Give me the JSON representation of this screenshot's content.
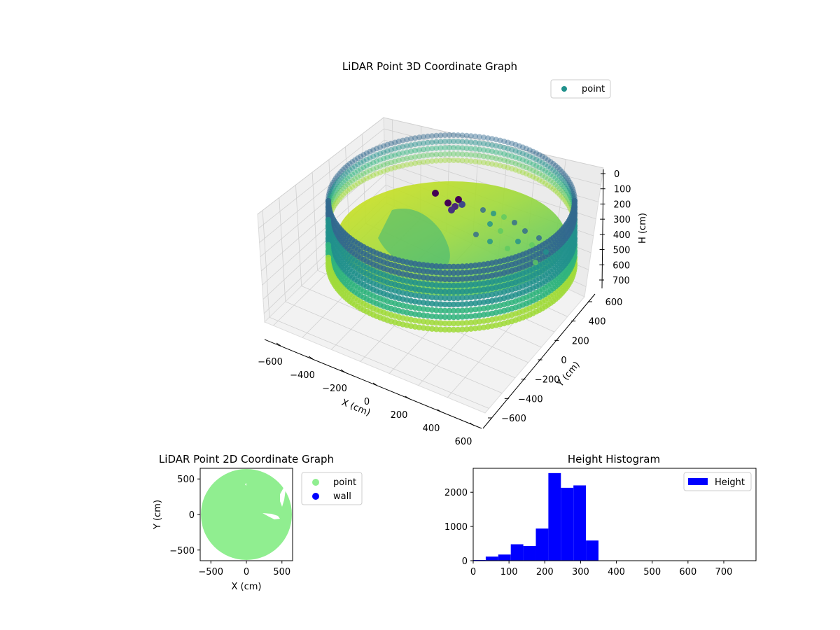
{
  "chart_data": [
    {
      "type": "scatter",
      "projection": "3d",
      "title": "LiDAR Point 3D Coordinate Graph",
      "xlabel": "X (cm)",
      "ylabel": "Y (cm)",
      "zlabel": "H (cm)",
      "xticks": [
        -600,
        -400,
        -200,
        0,
        200,
        400,
        600
      ],
      "yticks": [
        -600,
        -400,
        -200,
        0,
        200,
        400,
        600
      ],
      "zticks": [
        0,
        100,
        200,
        300,
        400,
        500,
        600,
        700
      ],
      "xlim": [
        -650,
        650
      ],
      "ylim": [
        -650,
        650
      ],
      "zlim": [
        750,
        0
      ],
      "z_inverted": true,
      "colormap": "viridis",
      "grid": true,
      "legend": {
        "position": "top-right",
        "entries": [
          {
            "label": "point",
            "color": "#21918c"
          }
        ]
      },
      "series": [
        {
          "name": "point",
          "description_of_shape": "cylindrical wall of points at radius ~650 cm from H 0 to ~600, plus interior ground points at H ~150–300",
          "wall_radius": 650,
          "wall_height_range": [
            0,
            600
          ],
          "interior_height_range": [
            150,
            300
          ]
        }
      ]
    },
    {
      "type": "scatter",
      "title": "LiDAR Point 2D Coordinate Graph",
      "xlabel": "X (cm)",
      "ylabel": "Y (cm)",
      "xticks": [
        -500,
        0,
        500
      ],
      "yticks": [
        -500,
        0,
        500
      ],
      "xlim": [
        -650,
        650
      ],
      "ylim": [
        -650,
        650
      ],
      "legend": {
        "position": "outside-right",
        "entries": [
          {
            "label": "point",
            "color": "#90ee90"
          },
          {
            "label": "wall",
            "color": "#0000ff"
          }
        ]
      },
      "region": {
        "shape": "disc",
        "radius": 650,
        "center": [
          0,
          0
        ],
        "color": "#90ee90"
      }
    },
    {
      "type": "bar",
      "subtype": "histogram",
      "title": "Height Histogram",
      "xlabel": "",
      "ylabel": "",
      "xticks": [
        0,
        100,
        200,
        300,
        400,
        500,
        600,
        700
      ],
      "yticks": [
        0,
        1000,
        2000
      ],
      "xlim": [
        0,
        790
      ],
      "ylim": [
        0,
        2700
      ],
      "bin_width": 35,
      "legend": {
        "position": "top-right",
        "entries": [
          {
            "label": "Height",
            "color": "#0000ff"
          }
        ]
      },
      "series": [
        {
          "name": "Height",
          "color": "#0000ff",
          "bins": [
            {
              "x0": 0,
              "x1": 35,
              "count": 20
            },
            {
              "x0": 35,
              "x1": 70,
              "count": 120
            },
            {
              "x0": 70,
              "x1": 105,
              "count": 180
            },
            {
              "x0": 105,
              "x1": 140,
              "count": 480
            },
            {
              "x0": 140,
              "x1": 175,
              "count": 430
            },
            {
              "x0": 175,
              "x1": 210,
              "count": 940
            },
            {
              "x0": 210,
              "x1": 245,
              "count": 2560
            },
            {
              "x0": 245,
              "x1": 280,
              "count": 2130
            },
            {
              "x0": 280,
              "x1": 315,
              "count": 2200
            },
            {
              "x0": 315,
              "x1": 350,
              "count": 590
            }
          ]
        }
      ]
    }
  ]
}
